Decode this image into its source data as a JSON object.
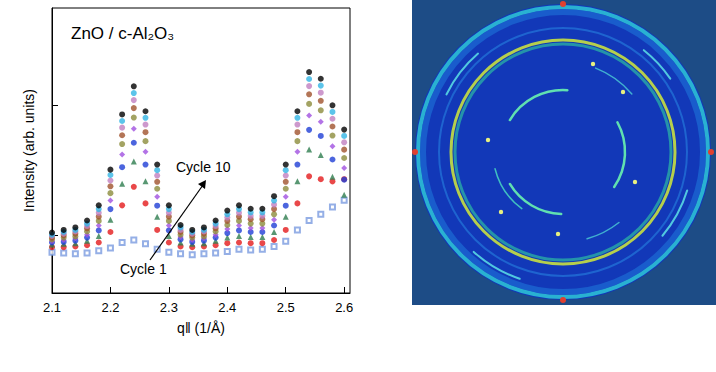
{
  "chart_data": {
    "type": "scatter",
    "title": "ZnO / c-Al₂O₃",
    "x_label": "q‖ (1/Å)",
    "y_label": "Intensity (arb. units)",
    "annotations": [
      "Cycle 10",
      "Cycle 1"
    ],
    "log": "y",
    "grid": false,
    "tick_labels": "x",
    "xlim": [
      2.1,
      2.61
    ],
    "xticks": [
      2.1,
      2.2,
      2.3,
      2.4,
      2.5,
      2.6
    ],
    "ylim": [
      0.36,
      56
    ],
    "yticks": [
      1,
      10
    ],
    "x": [
      2.1,
      2.12,
      2.14,
      2.16,
      2.18,
      2.2,
      2.22,
      2.24,
      2.26,
      2.28,
      2.3,
      2.32,
      2.34,
      2.36,
      2.38,
      2.4,
      2.42,
      2.44,
      2.46,
      2.48,
      2.5,
      2.52,
      2.54,
      2.56,
      2.58,
      2.6
    ],
    "series": [
      {
        "color": "#7b9be0",
        "marker": "emptyRect",
        "values": [
          0.74,
          0.73,
          0.72,
          0.73,
          0.76,
          0.8,
          0.88,
          0.92,
          0.86,
          0.78,
          0.74,
          0.72,
          0.71,
          0.72,
          0.73,
          0.75,
          0.78,
          0.77,
          0.78,
          0.82,
          0.9,
          1.1,
          1.3,
          1.45,
          1.65,
          1.86
        ]
      },
      {
        "color": "#e41a1c",
        "marker": "circle",
        "values": [
          0.81,
          0.81,
          0.82,
          0.84,
          0.88,
          1.06,
          1.7,
          2.36,
          1.76,
          1.1,
          0.88,
          0.82,
          0.81,
          0.82,
          0.84,
          0.87,
          0.88,
          0.87,
          0.87,
          0.92,
          1.1,
          1.76,
          2.84,
          2.7,
          2.6,
          2.7
        ]
      },
      {
        "color": "#2e7d4f",
        "marker": "triangle",
        "values": [
          0.85,
          0.86,
          0.87,
          0.91,
          0.99,
          1.32,
          2.49,
          3.7,
          2.6,
          1.39,
          0.99,
          0.88,
          0.86,
          0.87,
          0.91,
          0.96,
          0.99,
          0.97,
          0.97,
          1.06,
          1.39,
          2.6,
          4.58,
          4.14,
          2.82,
          2.05
        ]
      },
      {
        "color": "#1f3fd6",
        "marker": "circle",
        "values": [
          0.88,
          0.89,
          0.91,
          0.96,
          1.09,
          1.59,
          3.34,
          5.15,
          3.5,
          1.69,
          1.09,
          0.93,
          0.89,
          0.91,
          0.96,
          1.04,
          1.09,
          1.06,
          1.06,
          1.19,
          1.69,
          3.5,
          6.47,
          5.81,
          3.83,
          2.68
        ]
      },
      {
        "color": "#a050e0",
        "marker": "diamond",
        "values": [
          0.9,
          0.92,
          0.95,
          1.01,
          1.19,
          1.85,
          4.18,
          6.6,
          4.4,
          1.98,
          1.19,
          0.97,
          0.92,
          0.95,
          1.01,
          1.12,
          1.19,
          1.14,
          1.14,
          1.32,
          1.98,
          4.4,
          8.36,
          7.48,
          4.84,
          3.3
        ]
      },
      {
        "color": "#8c8c3c",
        "marker": "circle",
        "values": [
          0.93,
          0.96,
          0.98,
          1.07,
          1.29,
          2.11,
          5.03,
          8.05,
          5.3,
          2.28,
          1.29,
          1.01,
          0.96,
          0.98,
          1.07,
          1.2,
          1.29,
          1.23,
          1.23,
          1.45,
          2.28,
          5.3,
          10.25,
          9.15,
          5.85,
          3.93
        ]
      },
      {
        "color": "#a0522d",
        "marker": "circle",
        "values": [
          0.96,
          1.0,
          1.03,
          1.13,
          1.39,
          2.38,
          5.88,
          9.51,
          6.21,
          2.58,
          1.39,
          1.06,
          1.0,
          1.03,
          1.13,
          1.29,
          1.39,
          1.33,
          1.33,
          1.59,
          2.58,
          6.21,
          12.15,
          10.83,
          6.87,
          4.56
        ]
      },
      {
        "color": "#c080c0",
        "marker": "circle",
        "values": [
          0.99,
          1.03,
          1.07,
          1.18,
          1.49,
          2.64,
          6.73,
          10.96,
          7.11,
          2.88,
          1.49,
          1.1,
          1.03,
          1.07,
          1.18,
          1.37,
          1.49,
          1.41,
          1.41,
          1.72,
          2.88,
          7.11,
          14.04,
          12.5,
          7.88,
          5.19
        ]
      },
      {
        "color": "#33b5e5",
        "marker": "circle",
        "values": [
          1.01,
          1.06,
          1.1,
          1.23,
          1.59,
          2.91,
          7.57,
          12.41,
          8.01,
          3.17,
          1.59,
          1.15,
          1.06,
          1.1,
          1.23,
          1.45,
          1.59,
          1.5,
          1.5,
          1.85,
          3.17,
          8.01,
          15.93,
          14.17,
          8.89,
          5.81
        ]
      },
      {
        "color": "#000000",
        "marker": "circle",
        "values": [
          1.05,
          1.1,
          1.15,
          1.3,
          1.7,
          3.2,
          8.5,
          14,
          9,
          3.5,
          1.7,
          1.2,
          1.1,
          1.15,
          1.3,
          1.55,
          1.7,
          1.6,
          1.6,
          2,
          3.5,
          9,
          18,
          16,
          10,
          6.5
        ]
      }
    ]
  }
}
